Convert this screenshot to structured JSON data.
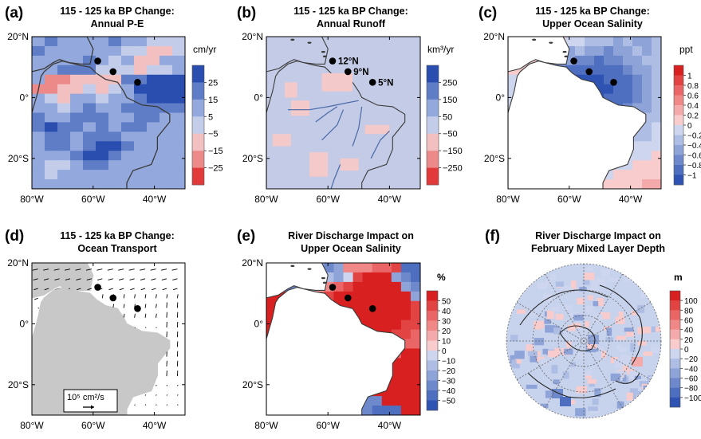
{
  "colors": {
    "land_white": "#ffffff",
    "land_gray": "#c8c8c8",
    "ocean_runoff": "#c3cbe6",
    "river": "#4a6aa8",
    "coast": "#3a3a3a",
    "polar_bg": "#c7d2ec"
  },
  "chart_data": [
    {
      "id": "a",
      "type": "heatmap",
      "letter": "(a)",
      "title": [
        "115 - 125 ka BP Change:",
        "Annual P-E"
      ],
      "units": "cm/yr",
      "xticks": [
        "80°W",
        "60°W",
        "40°W"
      ],
      "yticks": [
        "20°N",
        "0°",
        "20°S"
      ],
      "xlim": [
        -80,
        -30
      ],
      "ylim": [
        -30,
        20
      ],
      "colorbar": {
        "ticks": [
          "25",
          "15",
          "5",
          "−5",
          "−15",
          "−25"
        ],
        "values": [
          30,
          20,
          10,
          0,
          -10,
          -20,
          -30
        ],
        "colors": [
          "#2a4db0",
          "#5e7dc6",
          "#93a8dc",
          "#c3cdea",
          "#f2c0c0",
          "#ec8a8a",
          "#e23a3a"
        ]
      },
      "overlay": "dots",
      "grid": [
        [
          1,
          2,
          1,
          1,
          0,
          1,
          2,
          1,
          0,
          -1,
          -1,
          -1
        ],
        [
          2,
          1,
          1,
          1,
          0,
          0,
          1,
          -1,
          -1,
          -2,
          -2,
          -1
        ],
        [
          1,
          1,
          0,
          1,
          2,
          1,
          -1,
          0,
          -2,
          -2,
          1,
          0
        ],
        [
          1,
          1,
          2,
          2,
          2,
          -1,
          -1,
          -1,
          -2,
          -1,
          -1,
          0
        ],
        [
          0,
          -3,
          -3,
          -2,
          -2,
          -2,
          -2,
          2,
          2,
          3,
          3,
          3
        ],
        [
          -3,
          -3,
          -2,
          -2,
          -1,
          -2,
          -1,
          1,
          3,
          3,
          3,
          3
        ],
        [
          1,
          -1,
          -2,
          1,
          1,
          -1,
          0,
          1,
          2,
          3,
          3,
          3
        ],
        [
          1,
          0,
          -1,
          1,
          2,
          1,
          1,
          2,
          2,
          2,
          2,
          2
        ],
        [
          2,
          1,
          1,
          2,
          2,
          2,
          1,
          1,
          2,
          2,
          1,
          1
        ],
        [
          2,
          3,
          2,
          2,
          1,
          2,
          1,
          2,
          2,
          1,
          1,
          0
        ],
        [
          1,
          2,
          2,
          1,
          2,
          2,
          2,
          1,
          1,
          0,
          0,
          0
        ],
        [
          1,
          2,
          2,
          1,
          2,
          3,
          3,
          2,
          1,
          0,
          0,
          0
        ],
        [
          0,
          1,
          1,
          2,
          3,
          3,
          2,
          1,
          1,
          0,
          0,
          0
        ],
        [
          1,
          -1,
          -1,
          1,
          2,
          2,
          1,
          1,
          0,
          0,
          0,
          0
        ],
        [
          0,
          -1,
          1,
          1,
          1,
          1,
          1,
          0,
          0,
          0,
          0,
          0
        ],
        [
          1,
          0,
          1,
          1,
          1,
          0,
          0,
          0,
          0,
          0,
          0,
          0
        ]
      ]
    },
    {
      "id": "b",
      "type": "heatmap",
      "letter": "(b)",
      "title": [
        "115 - 125 ka BP Change:",
        "Annual Runoff"
      ],
      "units": "km³/yr",
      "xticks": [
        "80°W",
        "60°W",
        "40°W"
      ],
      "yticks": [
        "20°N",
        "0°",
        "20°S"
      ],
      "xlim": [
        -80,
        -30
      ],
      "ylim": [
        -30,
        20
      ],
      "colorbar": {
        "ticks": [
          "250",
          "150",
          "50",
          "−50",
          "−150",
          "−250"
        ],
        "values": [
          300,
          200,
          100,
          0,
          -100,
          -200,
          -300
        ],
        "colors": [
          "#2a4db0",
          "#5e7dc6",
          "#93a8dc",
          "#c3cdea",
          "#f2c0c0",
          "#ec8a8a",
          "#e23a3a"
        ]
      },
      "overlay": "runoff",
      "sites": [
        {
          "label": "12°N",
          "lon": -58.5,
          "lat": 12
        },
        {
          "label": "9°N",
          "lon": -53.5,
          "lat": 8.5
        },
        {
          "label": "5°N",
          "lon": -45.5,
          "lat": 5
        }
      ],
      "grid": []
    },
    {
      "id": "c",
      "type": "heatmap",
      "letter": "(c)",
      "title": [
        "115 - 125 ka BP Change:",
        "Upper Ocean Salinity"
      ],
      "units": "ppt",
      "xticks": [
        "80°W",
        "60°W",
        "40°W"
      ],
      "yticks": [
        "20°N",
        "0°",
        "20°S"
      ],
      "xlim": [
        -80,
        -30
      ],
      "ylim": [
        -30,
        20
      ],
      "colorbar": {
        "ticks": [
          "1",
          "0.8",
          "0.6",
          "0.4",
          "0.2",
          "0",
          "−0.2",
          "−0.4",
          "−0.6",
          "−0.8",
          "−1"
        ],
        "values": [
          1.1,
          0.9,
          0.7,
          0.5,
          0.3,
          0.1,
          -0.1,
          -0.3,
          -0.5,
          -0.7,
          -0.9,
          -1.1
        ],
        "colors": [
          "#d82020",
          "#e24444",
          "#ea6666",
          "#f08888",
          "#f4aaaa",
          "#f8cccc",
          "#cdd6ee",
          "#aebde4",
          "#8ea3d8",
          "#6e88cc",
          "#4e6ec0",
          "#2f53b2"
        ]
      },
      "overlay": "dots",
      "grid": [
        [
          2,
          2,
          1,
          1,
          1,
          0,
          -1,
          -1,
          -2,
          -2,
          -2,
          -3,
          -2,
          -3,
          -3,
          -2
        ],
        [
          2,
          1,
          1,
          0,
          -1,
          -2,
          -3,
          -2,
          -3,
          -3,
          -4,
          -3,
          -3,
          -2,
          -3,
          -2
        ],
        [
          1,
          1,
          0,
          -1,
          -2,
          -3,
          -3,
          -4,
          -4,
          -5,
          -4,
          -4,
          -3,
          -3,
          -2,
          -2
        ],
        [
          0,
          0,
          -1,
          -2,
          -3,
          -4,
          -5,
          -5,
          -6,
          -6,
          -5,
          -5,
          -4,
          -3,
          -3,
          -2
        ],
        [
          -1,
          -1,
          -2,
          -3,
          -4,
          -5,
          -6,
          -7,
          -7,
          -7,
          -6,
          -6,
          -5,
          -4,
          -3,
          -2
        ],
        [
          -1,
          -2,
          -3,
          -4,
          -5,
          -6,
          -7,
          -7,
          -8,
          -8,
          -7,
          -6,
          -5,
          -4,
          -3,
          -2
        ],
        [
          -1,
          -2,
          -3,
          -4,
          -5,
          -6,
          -7,
          -8,
          -8,
          -7,
          -6,
          -5,
          -5,
          -4,
          -3,
          -2
        ],
        [
          -1,
          -2,
          -3,
          -4,
          -5,
          -6,
          -7,
          -7,
          -7,
          -6,
          -5,
          -5,
          -4,
          -3,
          -3,
          -2
        ],
        [
          -1,
          -1,
          -2,
          -3,
          -4,
          -5,
          -6,
          -6,
          -6,
          -5,
          -4,
          -4,
          -3,
          -3,
          -2,
          -2
        ],
        [
          -1,
          -1,
          -2,
          -3,
          -3,
          -4,
          -5,
          -5,
          -5,
          -4,
          -4,
          -3,
          -3,
          -2,
          -2,
          -1
        ],
        [
          0,
          -1,
          -1,
          -2,
          -3,
          -3,
          -4,
          -4,
          -4,
          -4,
          -3,
          -3,
          -2,
          -2,
          -2,
          -1
        ],
        [
          0,
          0,
          -1,
          -1,
          -2,
          -2,
          -3,
          -3,
          -3,
          -3,
          -2,
          -2,
          -2,
          -1,
          -1,
          -1
        ],
        [
          1,
          0,
          0,
          -1,
          -1,
          -2,
          -2,
          -2,
          -2,
          -2,
          -2,
          -1,
          -1,
          -1,
          -1,
          0
        ],
        [
          1,
          1,
          0,
          0,
          -1,
          -1,
          -1,
          -2,
          -2,
          -1,
          -1,
          -1,
          -1,
          0,
          0,
          0
        ],
        [
          2,
          1,
          1,
          0,
          0,
          -1,
          -1,
          -1,
          -1,
          -1,
          -1,
          0,
          0,
          0,
          0,
          0
        ],
        [
          2,
          2,
          1,
          1,
          0,
          0,
          -1,
          -1,
          -1,
          0,
          0,
          0,
          0,
          0,
          1,
          1
        ]
      ]
    },
    {
      "id": "d",
      "type": "vector",
      "letter": "(d)",
      "title": [
        "115 - 125 ka BP Change:",
        "Ocean Transport"
      ],
      "xticks": [
        "80°W",
        "60°W",
        "40°W"
      ],
      "yticks": [
        "20°N",
        "0°",
        "20°S"
      ],
      "xlim": [
        -80,
        -30
      ],
      "ylim": [
        -30,
        20
      ],
      "legend": "10⁵ cm²/s",
      "overlay": "dots"
    },
    {
      "id": "e",
      "type": "heatmap",
      "letter": "(e)",
      "title": [
        "River Discharge Impact on",
        "Upper Ocean Salinity"
      ],
      "units": "%",
      "xticks": [
        "80°W",
        "60°W",
        "40°W"
      ],
      "yticks": [
        "20°N",
        "0°",
        "20°S"
      ],
      "xlim": [
        -80,
        -30
      ],
      "ylim": [
        -30,
        20
      ],
      "colorbar": {
        "ticks": [
          "50",
          "40",
          "30",
          "20",
          "10",
          "0",
          "−10",
          "−20",
          "−30",
          "−40",
          "−50"
        ],
        "values": [
          55,
          45,
          35,
          25,
          15,
          5,
          -5,
          -15,
          -25,
          -35,
          -45,
          -55
        ],
        "colors": [
          "#d82020",
          "#e24444",
          "#ea6666",
          "#f08888",
          "#f4aaaa",
          "#f8cccc",
          "#cdd6ee",
          "#aebde4",
          "#8ea3d8",
          "#6e88cc",
          "#4e6ec0",
          "#2f53b2"
        ]
      },
      "overlay": "dots",
      "grid": [
        [
          -5,
          -4,
          -3,
          -2,
          -1,
          -3,
          -4,
          -3,
          2,
          2,
          2,
          3,
          3,
          4,
          -5,
          -5
        ],
        [
          -4,
          -3,
          -3,
          -4,
          -2,
          -1,
          -2,
          -3,
          -1,
          4,
          5,
          6,
          6,
          -3,
          -4,
          -5
        ],
        [
          5,
          -3,
          -4,
          -3,
          -2,
          1,
          2,
          3,
          4,
          5,
          6,
          6,
          7,
          6,
          -3,
          -4
        ],
        [
          6,
          5,
          4,
          -2,
          2,
          3,
          4,
          5,
          6,
          6,
          7,
          7,
          7,
          6,
          5,
          -3
        ],
        [
          6,
          5,
          5,
          4,
          3,
          4,
          5,
          6,
          7,
          7,
          7,
          7,
          6,
          6,
          5,
          4
        ],
        [
          6,
          6,
          5,
          4,
          4,
          5,
          6,
          7,
          7,
          7,
          7,
          6,
          6,
          5,
          5,
          4
        ],
        [
          6,
          6,
          5,
          5,
          5,
          6,
          6,
          7,
          7,
          7,
          6,
          6,
          5,
          5,
          4,
          4
        ],
        [
          6,
          5,
          5,
          5,
          5,
          6,
          6,
          6,
          6,
          6,
          6,
          5,
          5,
          4,
          4,
          3
        ],
        [
          5,
          5,
          5,
          5,
          5,
          5,
          5,
          6,
          6,
          5,
          5,
          5,
          4,
          4,
          3,
          3
        ],
        [
          5,
          5,
          4,
          4,
          4,
          4,
          5,
          5,
          5,
          5,
          4,
          4,
          4,
          3,
          6,
          6
        ],
        [
          4,
          4,
          4,
          3,
          3,
          4,
          4,
          4,
          4,
          4,
          4,
          3,
          3,
          5,
          6,
          7
        ],
        [
          3,
          3,
          3,
          3,
          3,
          3,
          3,
          3,
          3,
          3,
          3,
          3,
          4,
          5,
          6,
          7
        ],
        [
          2,
          2,
          2,
          2,
          2,
          3,
          3,
          3,
          3,
          3,
          3,
          4,
          5,
          6,
          7,
          7
        ],
        [
          -1,
          2,
          2,
          2,
          2,
          2,
          2,
          3,
          3,
          4,
          5,
          6,
          6,
          7,
          7,
          7
        ],
        [
          -3,
          -4,
          -3,
          -1,
          1,
          2,
          2,
          3,
          4,
          5,
          -4,
          -4,
          6,
          7,
          7,
          7
        ],
        [
          -4,
          -5,
          -4,
          -3,
          -4,
          -3,
          -2,
          -1,
          -3,
          -4,
          -4,
          -5,
          -5,
          -5,
          7,
          7
        ]
      ]
    },
    {
      "id": "f",
      "type": "heatmap",
      "letter": "(f)",
      "title": [
        "River Discharge Impact on",
        "February Mixed Layer Depth"
      ],
      "units": "m",
      "projection": "polar",
      "colorbar": {
        "ticks": [
          "100",
          "80",
          "60",
          "40",
          "20",
          "0",
          "−20",
          "−40",
          "−60",
          "−80",
          "−100"
        ],
        "values": [
          110,
          90,
          70,
          50,
          30,
          10,
          -10,
          -30,
          -50,
          -70,
          -90,
          -110
        ],
        "colors": [
          "#d82020",
          "#e24444",
          "#ea6666",
          "#f08888",
          "#f4aaaa",
          "#f8cccc",
          "#cdd6ee",
          "#aebde4",
          "#8ea3d8",
          "#6e88cc",
          "#4e6ec0",
          "#2f53b2"
        ]
      }
    }
  ]
}
